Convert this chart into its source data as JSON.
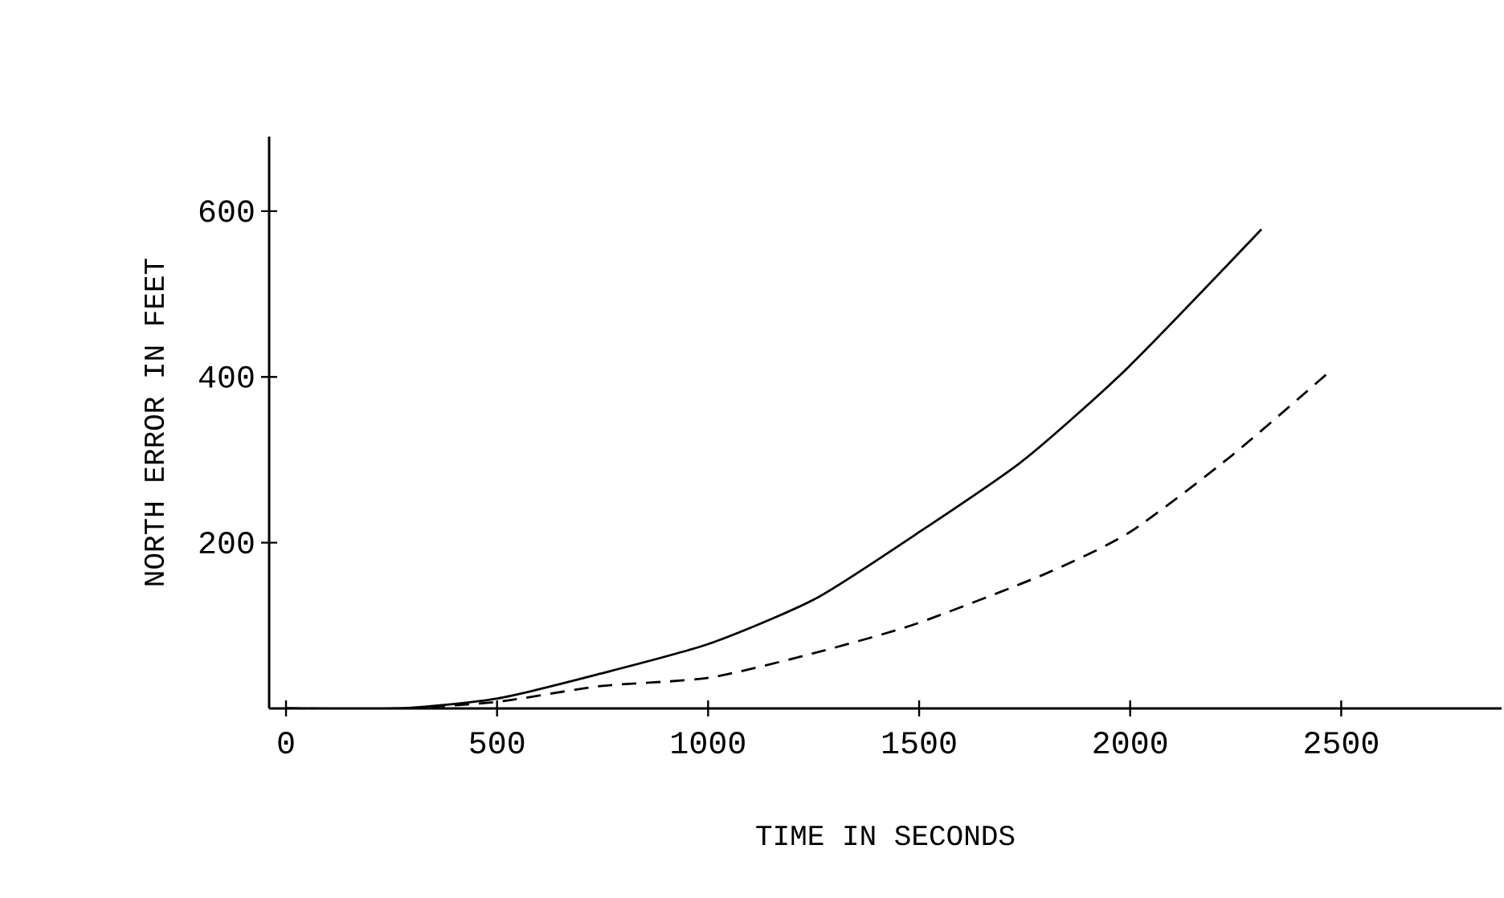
{
  "chart_data": {
    "type": "line",
    "xlabel": "TIME IN SECONDS",
    "ylabel": "NORTH ERROR IN FEET",
    "xlim": [
      -40,
      2880
    ],
    "ylim": [
      0,
      690
    ],
    "xticks": [
      0,
      500,
      1000,
      1500,
      2000,
      2500
    ],
    "yticks": [
      {
        "value": 200,
        "label": "200"
      },
      {
        "value": 400,
        "label": "400"
      },
      {
        "value": 600,
        "label": "600"
      }
    ],
    "grid": false,
    "series": [
      {
        "color": "#000000",
        "line_style": "solid",
        "x": [
          0,
          268,
          501,
          745,
          1002,
          1253,
          1492,
          1746,
          1994,
          2311
        ],
        "values": [
          0,
          0,
          12,
          42,
          78,
          132,
          210,
          299,
          411,
          578
        ]
      },
      {
        "color": "#000000",
        "line_style": "dashed",
        "x": [
          0,
          268,
          501,
          745,
          1002,
          1253,
          1492,
          1797,
          2000,
          2238,
          2467
        ],
        "values": [
          0,
          0,
          8,
          27,
          37,
          67,
          102,
          162,
          213,
          304,
          404
        ]
      }
    ]
  }
}
